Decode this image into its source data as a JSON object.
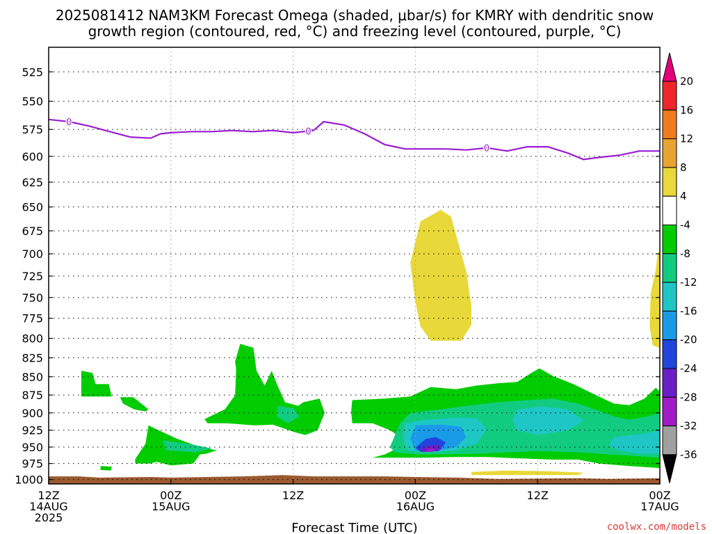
{
  "chart_data": {
    "type": "contour",
    "title_line1": "2025081412 NAM3KM Forecast Omega (shaded, μbar/s) for KMRY with dendritic snow",
    "title_line2": "growth region (contoured, red, °C) and freezing level (contoured, purple, °C)",
    "xlabel": "Forecast Time (UTC)",
    "x_ticks": [
      {
        "hour": 0,
        "lines": [
          "12Z",
          "14AUG",
          "2025"
        ]
      },
      {
        "hour": 12,
        "lines": [
          "00Z",
          "15AUG"
        ]
      },
      {
        "hour": 24,
        "lines": [
          "12Z"
        ]
      },
      {
        "hour": 36,
        "lines": [
          "00Z",
          "16AUG"
        ]
      },
      {
        "hour": 48,
        "lines": [
          "12Z"
        ]
      },
      {
        "hour": 60,
        "lines": [
          "00Z",
          "17AUG"
        ]
      }
    ],
    "xlim_hours": [
      0,
      60
    ],
    "ylabel": "",
    "y_ticks": [
      525,
      550,
      575,
      600,
      625,
      650,
      675,
      700,
      725,
      750,
      775,
      800,
      825,
      850,
      875,
      900,
      925,
      950,
      975,
      1000
    ],
    "ylim_hpa": [
      1007,
      505
    ],
    "y_scale": "log-pressure",
    "grid": true,
    "colorbar_labels": [
      "20",
      "16",
      "12",
      "8",
      "4",
      "-4",
      "-8",
      "-12",
      "-16",
      "-20",
      "-24",
      "-28",
      "-32",
      "-36"
    ],
    "colorbar_colors": [
      "#e3007b",
      "#f0262c",
      "#f07a1f",
      "#e7a431",
      "#e8d839",
      "#ffffff",
      "#00cc00",
      "#11cc80",
      "#1fc6c6",
      "#1a9be8",
      "#2244dd",
      "#6a1fc6",
      "#a01cc4",
      "#a0a0a0",
      "#000000"
    ],
    "freezing_level": {
      "color": "#9a1cd3",
      "contour_label": "0",
      "label_hours": [
        2,
        25.5,
        43
      ],
      "points": [
        [
          0,
          566
        ],
        [
          2,
          568
        ],
        [
          4,
          572
        ],
        [
          6,
          577
        ],
        [
          8,
          582
        ],
        [
          10,
          583
        ],
        [
          11,
          579
        ],
        [
          12,
          578
        ],
        [
          14,
          577
        ],
        [
          16,
          577
        ],
        [
          18,
          576
        ],
        [
          20,
          577
        ],
        [
          22,
          576
        ],
        [
          24,
          578
        ],
        [
          26,
          576
        ],
        [
          27,
          568
        ],
        [
          29,
          571
        ],
        [
          31,
          579
        ],
        [
          33,
          589
        ],
        [
          35,
          593
        ],
        [
          37,
          593
        ],
        [
          39,
          593
        ],
        [
          41,
          594
        ],
        [
          43,
          592
        ],
        [
          45,
          595
        ],
        [
          47,
          591
        ],
        [
          49,
          591
        ],
        [
          51,
          597
        ],
        [
          52.5,
          603
        ],
        [
          54,
          601
        ],
        [
          56,
          599
        ],
        [
          58,
          595
        ],
        [
          60,
          595
        ]
      ]
    },
    "omega_regions": [
      {
        "level": "4",
        "color": "#e8d839",
        "points": [
          [
            38.5,
            653
          ],
          [
            39.5,
            660
          ],
          [
            41,
            720
          ],
          [
            41.5,
            760
          ],
          [
            41.5,
            783
          ],
          [
            40.5,
            803
          ],
          [
            37.5,
            803
          ],
          [
            36.5,
            785
          ],
          [
            36,
            755
          ],
          [
            35.5,
            710
          ],
          [
            36.5,
            665
          ]
        ]
      },
      {
        "level": "4",
        "color": "#e8d839",
        "points": [
          [
            59.8,
            698
          ],
          [
            60,
            698
          ],
          [
            60,
            812
          ],
          [
            59.3,
            809
          ],
          [
            59,
            785
          ],
          [
            59.1,
            745
          ],
          [
            59.6,
            718
          ]
        ]
      },
      {
        "level": "4",
        "color": "#e8d839",
        "points": [
          [
            41.5,
            988
          ],
          [
            45,
            986
          ],
          [
            49,
            987
          ],
          [
            52.5,
            989
          ],
          [
            52,
            993
          ],
          [
            41.5,
            993
          ]
        ]
      },
      {
        "level": "-4",
        "color": "#00cc00",
        "points": [
          [
            3.2,
            842
          ],
          [
            4.3,
            845
          ],
          [
            4.6,
            860
          ],
          [
            5.9,
            860
          ],
          [
            6.2,
            877
          ],
          [
            3.2,
            877
          ]
        ]
      },
      {
        "level": "-4",
        "color": "#00cc00",
        "points": [
          [
            5.1,
            979
          ],
          [
            6.2,
            980
          ],
          [
            6.1,
            986
          ],
          [
            5.1,
            985
          ]
        ]
      },
      {
        "level": "-4",
        "color": "#00cc00",
        "points": [
          [
            7,
            878
          ],
          [
            8.3,
            878
          ],
          [
            9.8,
            895
          ],
          [
            9.5,
            898
          ],
          [
            8.4,
            895
          ],
          [
            7.3,
            887
          ]
        ]
      },
      {
        "level": "-4",
        "color": "#00cc00",
        "points": [
          [
            9.8,
            918
          ],
          [
            10.5,
            923
          ],
          [
            12.5,
            937
          ],
          [
            14.5,
            948
          ],
          [
            16.5,
            955
          ],
          [
            15.5,
            960
          ],
          [
            13.5,
            963
          ],
          [
            11.5,
            968
          ],
          [
            10,
            975
          ],
          [
            8.5,
            975
          ],
          [
            8.5,
            968
          ],
          [
            9.5,
            945
          ]
        ]
      },
      {
        "level": "-4",
        "color": "#00cc00",
        "points": [
          [
            10,
            935
          ],
          [
            11,
            947
          ],
          [
            13,
            952
          ],
          [
            15,
            958
          ],
          [
            14.2,
            975
          ],
          [
            12,
            978
          ],
          [
            10.5,
            972
          ]
        ]
      },
      {
        "level": "-4",
        "color": "#00cc00",
        "points": [
          [
            18.8,
            807
          ],
          [
            20.1,
            812
          ],
          [
            20.4,
            842
          ],
          [
            21.2,
            862
          ],
          [
            21.9,
            842
          ],
          [
            22.4,
            860
          ],
          [
            23.2,
            885
          ],
          [
            24.5,
            890
          ],
          [
            25,
            885
          ],
          [
            26.6,
            880
          ],
          [
            27.1,
            900
          ],
          [
            26.4,
            925
          ],
          [
            25.2,
            932
          ],
          [
            24.2,
            928
          ],
          [
            22,
            917
          ],
          [
            20.2,
            918
          ],
          [
            17.5,
            915
          ],
          [
            15.6,
            915
          ],
          [
            15.3,
            909
          ],
          [
            17.3,
            895
          ],
          [
            18.3,
            875
          ],
          [
            18.4,
            840
          ],
          [
            18.3,
            830
          ]
        ]
      },
      {
        "level": "-4",
        "color": "#00cc00",
        "points": [
          [
            29.8,
            882
          ],
          [
            33,
            880
          ],
          [
            35.5,
            877
          ],
          [
            37.5,
            864
          ],
          [
            40,
            867
          ],
          [
            42,
            862
          ],
          [
            44,
            859
          ],
          [
            46,
            857
          ],
          [
            47.5,
            844
          ],
          [
            48.2,
            839
          ],
          [
            49.5,
            849
          ],
          [
            51.5,
            860
          ],
          [
            54,
            877
          ],
          [
            55.5,
            887
          ],
          [
            57,
            889
          ],
          [
            58.5,
            880
          ],
          [
            59.6,
            865
          ],
          [
            60,
            870
          ],
          [
            60,
            982
          ],
          [
            57,
            979
          ],
          [
            54,
            975
          ],
          [
            52,
            969
          ],
          [
            49.5,
            969
          ],
          [
            46,
            967
          ],
          [
            43,
            965
          ],
          [
            40,
            965
          ],
          [
            37,
            966
          ],
          [
            34.5,
            966
          ],
          [
            31.8,
            966
          ],
          [
            33,
            961
          ],
          [
            34.5,
            950
          ],
          [
            34.8,
            938
          ],
          [
            33.5,
            925
          ],
          [
            31.8,
            915
          ],
          [
            29.8,
            915
          ],
          [
            29.7,
            898
          ]
        ]
      },
      {
        "level": "-8",
        "color": "#11cc80",
        "points": [
          [
            35.5,
            900
          ],
          [
            38.5,
            895
          ],
          [
            41,
            890
          ],
          [
            44,
            885
          ],
          [
            47,
            882
          ],
          [
            49.5,
            880
          ],
          [
            52,
            887
          ],
          [
            54,
            897
          ],
          [
            55.5,
            905
          ],
          [
            57,
            910
          ],
          [
            58.8,
            905
          ],
          [
            60,
            900
          ],
          [
            60,
            966
          ],
          [
            57,
            963
          ],
          [
            54,
            960
          ],
          [
            51,
            957
          ],
          [
            48,
            956
          ],
          [
            45,
            958
          ],
          [
            42,
            960
          ],
          [
            39,
            961
          ],
          [
            36,
            961
          ],
          [
            34,
            958
          ],
          [
            33.5,
            950
          ],
          [
            34,
            932
          ],
          [
            34.5,
            915
          ]
        ]
      },
      {
        "level": "-8",
        "color": "#11cc80",
        "points": [
          [
            11.2,
            940
          ],
          [
            14,
            946
          ],
          [
            16,
            952
          ],
          [
            14.5,
            958
          ],
          [
            11.5,
            955
          ]
        ]
      },
      {
        "level": "-8",
        "color": "#11cc80",
        "points": [
          [
            22.5,
            890
          ],
          [
            24,
            893
          ],
          [
            24.6,
            905
          ],
          [
            23.5,
            915
          ],
          [
            22.4,
            905
          ]
        ]
      },
      {
        "level": "-12",
        "color": "#1fc6c6",
        "points": [
          [
            35,
            915
          ],
          [
            37,
            910
          ],
          [
            40,
            907
          ],
          [
            42,
            908
          ],
          [
            43,
            923
          ],
          [
            42,
            945
          ],
          [
            40,
            955
          ],
          [
            37,
            958
          ],
          [
            35.3,
            955
          ],
          [
            34.8,
            940
          ]
        ]
      },
      {
        "level": "-12",
        "color": "#1fc6c6",
        "points": [
          [
            46,
            895
          ],
          [
            48.5,
            891
          ],
          [
            51,
            895
          ],
          [
            52.5,
            911
          ],
          [
            51,
            925
          ],
          [
            48,
            932
          ],
          [
            46,
            925
          ],
          [
            45.5,
            910
          ]
        ]
      },
      {
        "level": "-12",
        "color": "#1fc6c6",
        "points": [
          [
            55.5,
            935
          ],
          [
            58.5,
            930
          ],
          [
            60,
            925
          ],
          [
            60,
            960
          ],
          [
            58,
            960
          ],
          [
            56,
            955
          ],
          [
            55,
            948
          ]
        ]
      },
      {
        "level": "-16",
        "color": "#1a9be8",
        "points": [
          [
            36,
            918
          ],
          [
            38.5,
            917
          ],
          [
            40.5,
            920
          ],
          [
            41,
            935
          ],
          [
            40,
            950
          ],
          [
            38,
            956
          ],
          [
            36,
            955
          ],
          [
            35.5,
            938
          ]
        ]
      },
      {
        "level": "-20",
        "color": "#2244dd",
        "points": [
          [
            37,
            938
          ],
          [
            38,
            935
          ],
          [
            39,
            943
          ],
          [
            38.3,
            956
          ],
          [
            36.5,
            957
          ],
          [
            36,
            951
          ]
        ]
      },
      {
        "level": "-24",
        "color": "#6a1fc6",
        "points": [
          [
            37.2,
            948
          ],
          [
            38.3,
            947
          ],
          [
            38.6,
            953
          ],
          [
            37.6,
            957
          ],
          [
            36.6,
            957
          ],
          [
            36.6,
            952
          ]
        ]
      },
      {
        "level": "-28",
        "color": "#a01cc4",
        "points": [
          [
            37.2,
            952
          ],
          [
            37.8,
            952
          ],
          [
            37.9,
            956
          ],
          [
            37.4,
            957
          ],
          [
            37.1,
            955
          ]
        ]
      }
    ],
    "terrain": {
      "color": "#9b5a2f",
      "top_points": [
        [
          0,
          995
        ],
        [
          3,
          995
        ],
        [
          5,
          997
        ],
        [
          10,
          996
        ],
        [
          12,
          997
        ],
        [
          19,
          995
        ],
        [
          23,
          993
        ],
        [
          26,
          995
        ],
        [
          33,
          995
        ],
        [
          36,
          996
        ],
        [
          40,
          997
        ],
        [
          44,
          999
        ],
        [
          52,
          998
        ],
        [
          55,
          999
        ],
        [
          60,
          998
        ]
      ]
    },
    "credit": "coolwx.com/models"
  }
}
